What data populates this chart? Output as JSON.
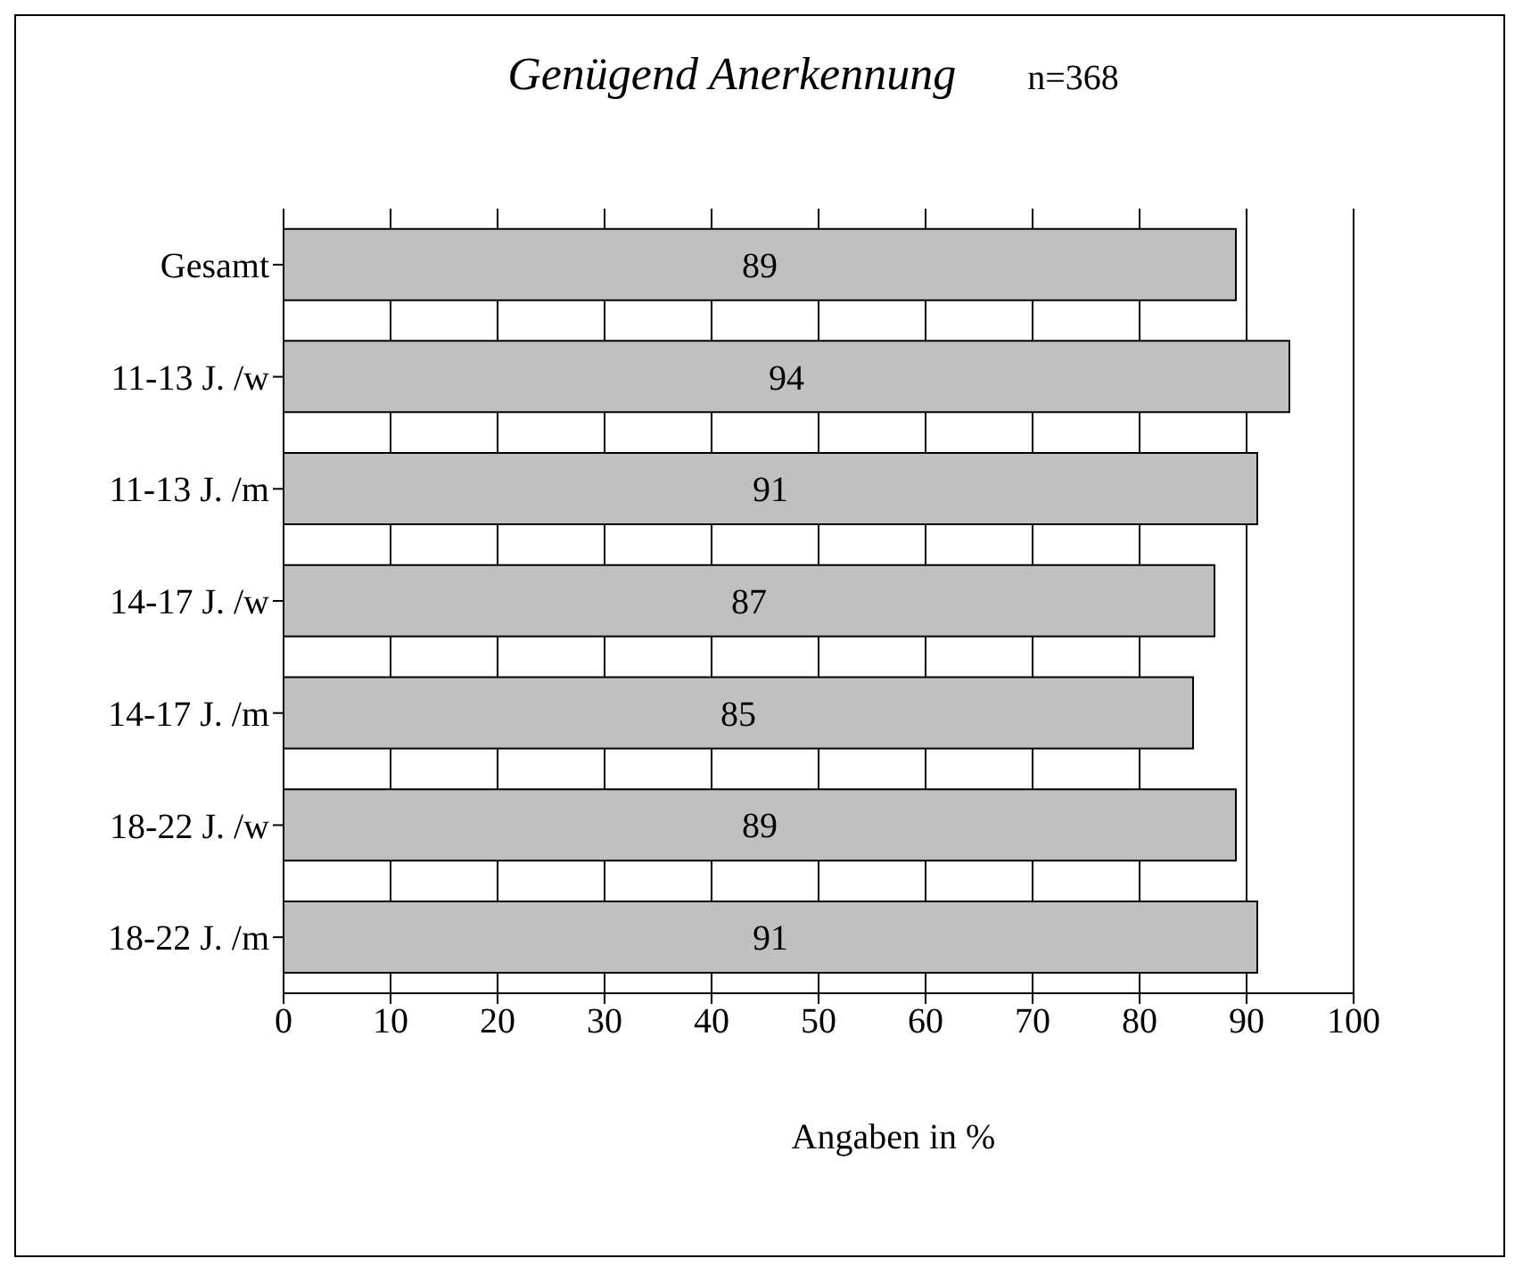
{
  "chart_data": {
    "type": "bar",
    "orientation": "horizontal",
    "title": "Genügend Anerkennung",
    "annotations": [
      "n=368"
    ],
    "xlabel": "Angaben in %",
    "categories": [
      "Gesamt",
      "11-13 J. /w",
      "11-13 J. /m",
      "14-17 J. /w",
      "14-17 J. /m",
      "18-22 J. /w",
      "18-22 J. /m"
    ],
    "values": [
      89,
      94,
      91,
      87,
      85,
      89,
      91
    ],
    "color": "#c0c0c0",
    "xlim": [
      0,
      100
    ],
    "xticks": [
      0,
      10,
      20,
      30,
      40,
      50,
      60,
      70,
      80,
      90,
      100
    ],
    "grid": "x",
    "data_labels": true
  }
}
